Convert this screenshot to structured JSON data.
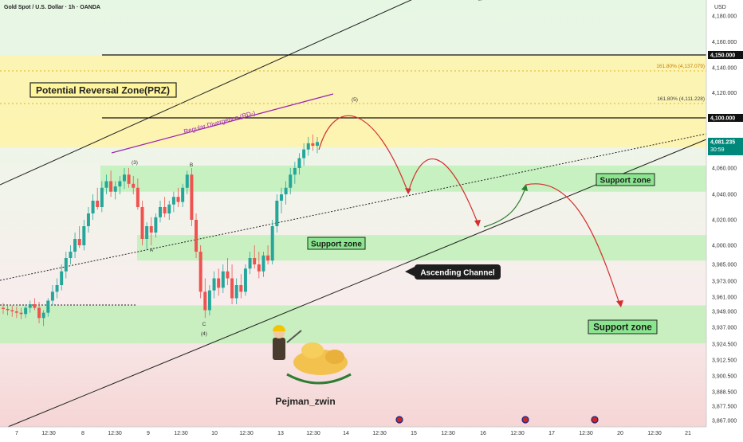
{
  "header": {
    "symbol_title": "Gold Spot / U.S. Dollar · 1h · OANDA",
    "currency": "USD"
  },
  "colors": {
    "up_candle": "#26a69a",
    "down_candle": "#ef5350",
    "prz_fill": "#fff3a8",
    "support_fill": "#b9f0b3",
    "projection_red": "#d32f2f",
    "projection_green": "#2e7d32",
    "price_badge": "#00897b"
  },
  "chart_data": {
    "type": "candlestick",
    "title": "Gold Spot / U.S. Dollar · 1h · OANDA",
    "y_axis": {
      "currency": "USD",
      "tick_labels": [
        "4,180.000",
        "4,160.000",
        "4,150.000",
        "4,140.000",
        "4,120.000",
        "4,100.000",
        "4,081.235",
        "4,060.000",
        "4,040.000",
        "4,020.000",
        "4,000.000",
        "3,985.000",
        "3,973.000",
        "3,961.000",
        "3,949.000",
        "3,937.000",
        "3,924.500",
        "3,912.500",
        "3,900.500",
        "3,888.500",
        "3,877.500",
        "3,867.000"
      ],
      "range": [
        3862,
        4190
      ]
    },
    "x_axis": {
      "tick_labels": [
        "7",
        "12:30",
        "8",
        "12:30",
        "9",
        "12:30",
        "10",
        "12:30",
        "13",
        "12:30",
        "14",
        "12:30",
        "15",
        "12:30",
        "16",
        "12:30",
        "17",
        "12:30",
        "20",
        "12:30",
        "21"
      ]
    },
    "last_price": {
      "value": "4,081.235",
      "countdown": "30:59"
    },
    "horizontal_levels": [
      {
        "value": 4150,
        "label": "4,150.000"
      },
      {
        "value": 4100,
        "label": "4,100.000"
      }
    ],
    "fib_labels": [
      "161.80% (4,137.079)",
      "161.80% (4,111.228)"
    ],
    "zones": [
      {
        "name": "Potential Reversal Zone(PRZ)",
        "range": [
          4077,
          4150
        ],
        "color": "#fff3a8"
      },
      {
        "name": "Support zone",
        "range": [
          4042,
          4062
        ],
        "color": "#b9f0b3"
      },
      {
        "name": "Support zone",
        "range": [
          3988,
          4008
        ],
        "color": "#b9f0b3"
      },
      {
        "name": "Support zone",
        "range": [
          3925,
          3954
        ],
        "color": "#b9f0b3"
      }
    ],
    "wave_labels": [
      "(3)",
      "B",
      "A",
      "C",
      "(4)",
      "(5)"
    ],
    "annotations": {
      "prz_label": "Potential Reversal Zone(PRZ)",
      "divergence_label": "Regular Divergence (RD-)",
      "support_label_1": "Support zone",
      "support_label_2": "Support zone",
      "support_label_3": "Support zone",
      "channel_label": "Ascending Channel",
      "author": "Pejman_zwin"
    },
    "candles": [
      [
        3952,
        3956,
        3947,
        3951
      ],
      [
        3951,
        3955,
        3946,
        3950
      ],
      [
        3950,
        3954,
        3945,
        3949
      ],
      [
        3949,
        3953,
        3944,
        3948
      ],
      [
        3948,
        3952,
        3943,
        3947
      ],
      [
        3947,
        3955,
        3944,
        3952
      ],
      [
        3952,
        3958,
        3948,
        3955
      ],
      [
        3955,
        3960,
        3950,
        3952
      ],
      [
        3952,
        3957,
        3940,
        3944
      ],
      [
        3944,
        3950,
        3938,
        3948
      ],
      [
        3948,
        3960,
        3945,
        3958
      ],
      [
        3958,
        3970,
        3954,
        3965
      ],
      [
        3965,
        3975,
        3960,
        3970
      ],
      [
        3970,
        3985,
        3966,
        3980
      ],
      [
        3980,
        3995,
        3975,
        3990
      ],
      [
        3990,
        4000,
        3985,
        3995
      ],
      [
        3995,
        4010,
        3990,
        4005
      ],
      [
        4005,
        4015,
        3998,
        4000
      ],
      [
        4000,
        4020,
        3996,
        4015
      ],
      [
        4015,
        4030,
        4010,
        4025
      ],
      [
        4025,
        4040,
        4020,
        4035
      ],
      [
        4035,
        4045,
        4028,
        4030
      ],
      [
        4030,
        4050,
        4026,
        4045
      ],
      [
        4045,
        4055,
        4040,
        4050
      ],
      [
        4050,
        4058,
        4038,
        4042
      ],
      [
        4042,
        4050,
        4036,
        4046
      ],
      [
        4046,
        4054,
        4040,
        4050
      ],
      [
        4050,
        4060,
        4044,
        4055
      ],
      [
        4055,
        4060,
        4045,
        4048
      ],
      [
        4048,
        4054,
        4040,
        4045
      ],
      [
        4045,
        4052,
        4028,
        4030
      ],
      [
        4030,
        4035,
        4000,
        4005
      ],
      [
        4005,
        4018,
        3996,
        4015
      ],
      [
        4015,
        4022,
        4000,
        4010
      ],
      [
        4010,
        4025,
        4006,
        4022
      ],
      [
        4022,
        4035,
        4018,
        4030
      ],
      [
        4030,
        4038,
        4022,
        4025
      ],
      [
        4025,
        4035,
        4020,
        4032
      ],
      [
        4032,
        4042,
        4026,
        4038
      ],
      [
        4038,
        4045,
        4030,
        4034
      ],
      [
        4034,
        4048,
        4030,
        4045
      ],
      [
        4045,
        4058,
        4040,
        4055
      ],
      [
        4055,
        4060,
        4015,
        4020
      ],
      [
        4020,
        4025,
        3990,
        3995
      ],
      [
        3995,
        4000,
        3960,
        3965
      ],
      [
        3965,
        3975,
        3944,
        3950
      ],
      [
        3950,
        3970,
        3946,
        3966
      ],
      [
        3966,
        3980,
        3960,
        3975
      ],
      [
        3975,
        3982,
        3962,
        3968
      ],
      [
        3968,
        3985,
        3964,
        3980
      ],
      [
        3980,
        3990,
        3970,
        3975
      ],
      [
        3975,
        3985,
        3955,
        3960
      ],
      [
        3960,
        3975,
        3955,
        3970
      ],
      [
        3970,
        3978,
        3960,
        3965
      ],
      [
        3965,
        3985,
        3962,
        3982
      ],
      [
        3982,
        3995,
        3978,
        3990
      ],
      [
        3990,
        4000,
        3982,
        3985
      ],
      [
        3985,
        3995,
        3975,
        3980
      ],
      [
        3980,
        3995,
        3976,
        3992
      ],
      [
        3992,
        4000,
        3985,
        3988
      ],
      [
        3988,
        4020,
        3985,
        4015
      ],
      [
        4015,
        4040,
        4010,
        4035
      ],
      [
        4035,
        4045,
        4025,
        4040
      ],
      [
        4040,
        4050,
        4032,
        4045
      ],
      [
        4045,
        4060,
        4040,
        4055
      ],
      [
        4055,
        4065,
        4048,
        4060
      ],
      [
        4060,
        4072,
        4055,
        4068
      ],
      [
        4068,
        4080,
        4062,
        4075
      ],
      [
        4075,
        4085,
        4070,
        4080
      ],
      [
        4080,
        4087,
        4074,
        4078
      ],
      [
        4078,
        4085,
        4072,
        4081
      ]
    ]
  }
}
